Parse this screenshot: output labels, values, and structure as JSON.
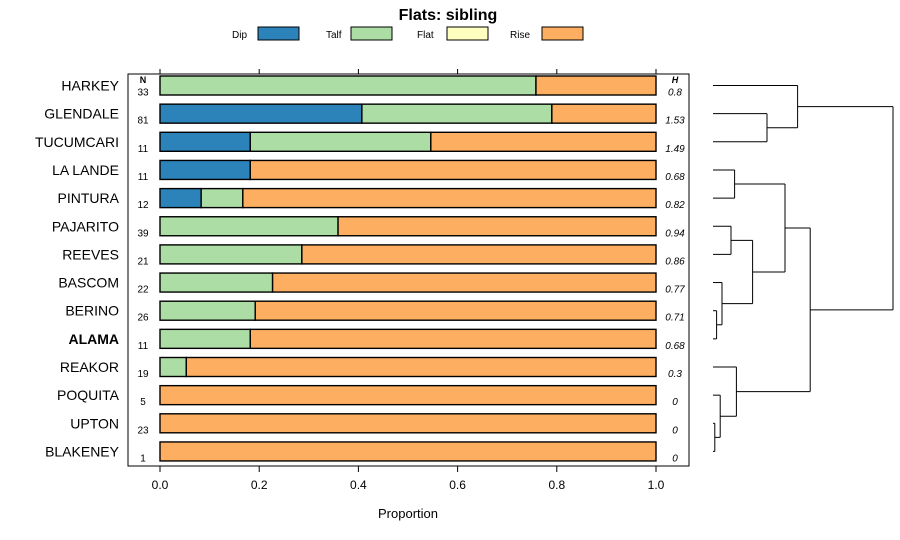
{
  "chart_data": {
    "type": "bar",
    "orientation": "horizontal",
    "stacked": true,
    "title": "Flats: sibling",
    "xlabel": "Proportion",
    "ylabel": "",
    "xlim": [
      0,
      1
    ],
    "x_ticks": [
      "0.0",
      "0.2",
      "0.4",
      "0.6",
      "0.8",
      "1.0"
    ],
    "x_tick_values": [
      0,
      0.2,
      0.4,
      0.6,
      0.8,
      1.0
    ],
    "n_header": "N",
    "h_header": "H",
    "legend": [
      {
        "name": "Dip",
        "color": "#2b83ba"
      },
      {
        "name": "Talf",
        "color": "#abdda4"
      },
      {
        "name": "Flat",
        "color": "#ffffbf"
      },
      {
        "name": "Rise",
        "color": "#fdae61"
      }
    ],
    "categories": [
      "HARKEY",
      "GLENDALE",
      "TUCUMCARI",
      "LA LANDE",
      "PINTURA",
      "PAJARITO",
      "REEVES",
      "BASCOM",
      "BERINO",
      "ALAMA",
      "REAKOR",
      "POQUITA",
      "UPTON",
      "BLAKENEY"
    ],
    "highlight": "ALAMA",
    "n": [
      "33",
      "81",
      "11",
      "11",
      "12",
      "39",
      "21",
      "22",
      "26",
      "11",
      "19",
      "5",
      "23",
      "1"
    ],
    "h": [
      "0.8",
      "1.53",
      "1.49",
      "0.68",
      "0.82",
      "0.94",
      "0.86",
      "0.77",
      "0.71",
      "0.68",
      "0.3",
      "0",
      "0",
      "0"
    ],
    "series": [
      {
        "name": "Dip",
        "values": [
          0,
          0.407,
          0.182,
          0.182,
          0.083,
          0,
          0,
          0,
          0,
          0,
          0,
          0,
          0,
          0
        ]
      },
      {
        "name": "Talf",
        "values": [
          0.758,
          0.383,
          0.364,
          0,
          0.084,
          0.359,
          0.286,
          0.227,
          0.192,
          0.182,
          0.053,
          0,
          0,
          0
        ]
      },
      {
        "name": "Flat",
        "values": [
          0,
          0,
          0,
          0,
          0,
          0,
          0,
          0,
          0,
          0,
          0,
          0,
          0,
          0
        ]
      },
      {
        "name": "Rise",
        "values": [
          0.242,
          0.21,
          0.454,
          0.818,
          0.833,
          0.641,
          0.714,
          0.773,
          0.808,
          0.818,
          0.947,
          1,
          1,
          1
        ]
      }
    ],
    "dendrogram": {
      "merges": [
        {
          "a": 12,
          "b": 13,
          "height": 0.01
        },
        {
          "a": 8,
          "b": 9,
          "height": 0.02
        },
        {
          "a": 11,
          "b": "m0",
          "height": 0.04
        },
        {
          "a": 3,
          "b": 4,
          "height": 0.12
        },
        {
          "a": 7,
          "b": "m1",
          "height": 0.05
        },
        {
          "a": 5,
          "b": 6,
          "height": 0.1
        },
        {
          "a": "m5",
          "b": "m4",
          "height": 0.22
        },
        {
          "a": 1,
          "b": 2,
          "height": 0.3
        },
        {
          "a": "m3",
          "b": "m6",
          "height": 0.4
        },
        {
          "a": 10,
          "b": "m2",
          "height": 0.13
        },
        {
          "a": 0,
          "b": "m7",
          "height": 0.47
        },
        {
          "a": "m8",
          "b": "m9",
          "height": 0.54
        },
        {
          "a": "m10",
          "b": "m11",
          "height": 1.0
        }
      ]
    }
  }
}
